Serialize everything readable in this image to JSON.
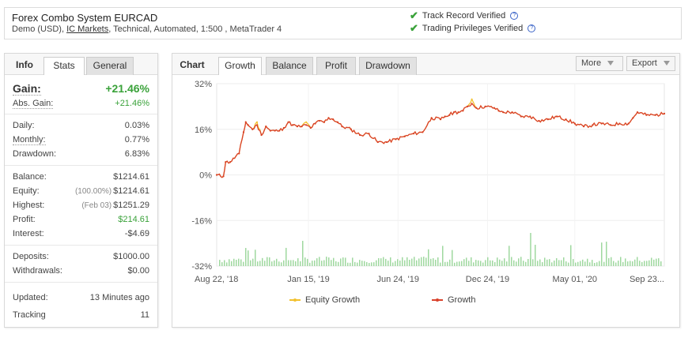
{
  "header": {
    "title": "Forex Combo System EURCAD",
    "sub_prefix": "Demo (USD), ",
    "broker": "IC Markets",
    "sub_suffix": ", Technical, Automated, 1:500 , MetaTrader 4",
    "verify_track": "Track Record Verified",
    "verify_trading": "Trading Privileges Verified"
  },
  "left_tabs": {
    "info": "Info",
    "stats": "Stats",
    "general": "General"
  },
  "stats": {
    "gain": {
      "label": "Gain:",
      "value": "+21.46%"
    },
    "abs_gain": {
      "label": "Abs. Gain:",
      "value": "+21.46%"
    },
    "daily": {
      "label": "Daily:",
      "value": "0.03%"
    },
    "monthly": {
      "label": "Monthly:",
      "value": "0.77%"
    },
    "drawdown": {
      "label": "Drawdown:",
      "value": "6.83%"
    },
    "balance": {
      "label": "Balance:",
      "value": "$1214.61"
    },
    "equity": {
      "label": "Equity:",
      "note": "(100.00%)",
      "value": "$1214.61"
    },
    "highest": {
      "label": "Highest:",
      "note": "(Feb 03)",
      "value": "$1251.29"
    },
    "profit": {
      "label": "Profit:",
      "value": "$214.61"
    },
    "interest": {
      "label": "Interest:",
      "value": "-$4.69"
    },
    "deposits": {
      "label": "Deposits:",
      "value": "$1000.00"
    },
    "withdrawals": {
      "label": "Withdrawals:",
      "value": "$0.00"
    },
    "updated": {
      "label": "Updated:",
      "value": "13 Minutes ago"
    },
    "tracking": {
      "label": "Tracking",
      "value": "11"
    }
  },
  "chart_tabs": {
    "chart": "Chart",
    "growth": "Growth",
    "balance": "Balance",
    "profit": "Profit",
    "drawdown": "Drawdown",
    "more": "More",
    "export": "Export"
  },
  "colors": {
    "growth": "#d9412b",
    "equity": "#f2c12e",
    "bars": "#9fd89f",
    "positive": "#3aa23a"
  },
  "chart_data": {
    "type": "line",
    "title": "",
    "ylim": [
      -32,
      32
    ],
    "y_ticks": [
      32,
      16,
      0,
      -16,
      -32
    ],
    "y_tick_labels": [
      "32%",
      "16%",
      "0%",
      "-16%",
      "-32%"
    ],
    "x_tick_labels": [
      "Aug 22, '18",
      "Jan 15, '19",
      "Jun 24, '19",
      "Dec 24, '19",
      "May 01, '20",
      "Sep 23..."
    ],
    "x_range": [
      0,
      100
    ],
    "x_tick_positions": [
      0,
      20.5,
      40.5,
      60.5,
      80,
      100
    ],
    "series": [
      {
        "name": "Growth",
        "x": [
          0,
          1.5,
          2,
          3,
          5,
          6,
          6.5,
          7,
          8,
          9,
          10,
          11,
          12,
          13,
          14,
          15,
          16,
          17,
          18,
          19,
          20,
          21,
          22,
          23,
          24,
          25,
          26,
          27,
          28,
          30,
          32,
          34,
          36,
          38,
          40,
          42,
          44,
          46,
          48,
          50,
          51,
          52,
          53,
          54,
          55,
          56,
          57,
          58,
          60,
          62,
          63,
          64,
          66,
          68,
          70,
          72,
          74,
          76,
          78,
          80,
          82,
          84,
          86,
          88,
          90,
          92,
          93,
          94,
          96,
          98,
          100
        ],
        "y": [
          0,
          -0.5,
          4.5,
          4.5,
          7.5,
          15,
          18.5,
          17.5,
          16,
          17.5,
          14,
          17,
          15.5,
          15.5,
          15.5,
          16.5,
          18.5,
          17.5,
          17,
          17,
          17.5,
          16.5,
          18,
          19,
          18.5,
          20,
          19.5,
          18.5,
          17,
          16,
          14,
          14.5,
          11.5,
          11.5,
          12.5,
          13.5,
          14.5,
          15,
          20,
          19.5,
          20.5,
          21,
          22,
          22,
          22.5,
          24,
          25,
          23.5,
          24,
          23.5,
          22.5,
          22,
          22,
          20.5,
          20.5,
          19,
          19.5,
          20.5,
          19.5,
          18,
          17,
          17.5,
          18,
          17.5,
          18,
          18,
          20,
          22,
          21,
          21,
          21.5
        ]
      },
      {
        "name": "Equity Growth",
        "x": [
          0,
          1.5,
          2,
          3,
          5,
          6,
          6.5,
          7,
          8,
          9,
          10,
          11,
          12,
          13,
          14,
          15,
          16,
          17,
          18,
          19,
          20,
          21,
          22,
          23,
          24,
          25,
          26,
          27,
          28,
          30,
          32,
          34,
          36,
          38,
          40,
          42,
          44,
          46,
          48,
          50,
          51,
          52,
          53,
          54,
          55,
          56,
          57,
          58,
          60,
          62,
          63,
          64,
          66,
          68,
          70,
          72,
          74,
          76,
          78,
          80,
          82,
          84,
          86,
          88,
          90,
          92,
          93,
          94,
          96,
          98,
          100
        ],
        "y": [
          0,
          -0.5,
          4.5,
          4.5,
          7.5,
          15,
          18.5,
          17.5,
          16,
          18.5,
          14,
          17,
          15.5,
          15.5,
          15.5,
          16.5,
          18.5,
          17.5,
          17,
          17,
          18.5,
          16.5,
          18,
          19,
          18.5,
          20,
          19.5,
          18.5,
          17,
          16,
          14,
          14.5,
          11.5,
          11.5,
          12.5,
          13.5,
          14.5,
          15,
          20,
          19.5,
          20.5,
          21,
          22,
          22,
          22.5,
          24,
          26.5,
          23.5,
          24,
          23.5,
          22.5,
          22,
          22,
          20.5,
          20.5,
          19,
          19.5,
          20.5,
          19.5,
          18,
          17,
          17.5,
          18,
          17.5,
          18,
          18,
          20,
          22,
          21,
          21,
          21.5
        ]
      }
    ],
    "legend_position": "bottom",
    "grid": true
  }
}
